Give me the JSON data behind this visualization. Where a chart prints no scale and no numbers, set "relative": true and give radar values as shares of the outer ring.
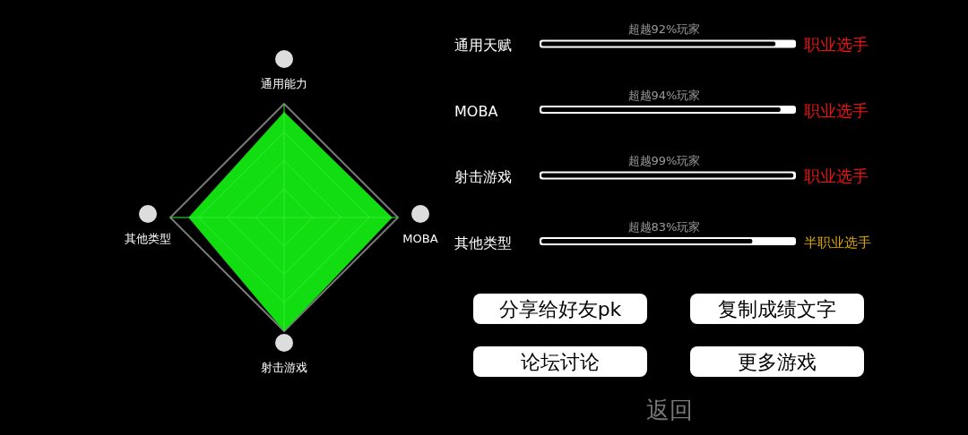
{
  "chart_data": [
    {
      "type": "radar",
      "categories": [
        "通用能力",
        "MOBA",
        "射击游戏",
        "其他类型"
      ],
      "relative": true,
      "grid": true,
      "series": [
        {
          "color": "#11dd11",
          "values": [
            0.93,
            0.95,
            1.0,
            0.84
          ]
        }
      ]
    },
    {
      "type": "bar",
      "orientation": "horizontal",
      "categories": [
        "通用天赋",
        "MOBA",
        "射击游戏",
        "其他类型"
      ],
      "values": [
        92,
        94,
        99,
        83
      ],
      "color": "#000000",
      "xlim": [
        0,
        100
      ],
      "tick_labels": false,
      "value_labels": [
        "超越92%玩家",
        "超越94%玩家",
        "超越99%玩家",
        "超越83%玩家"
      ],
      "annotations": [
        "职业选手",
        "职业选手",
        "职业选手",
        "半职业选手",
        "分享给好友pk",
        "复制成绩文字",
        "论坛讨论",
        "更多游戏",
        "返回"
      ]
    }
  ]
}
